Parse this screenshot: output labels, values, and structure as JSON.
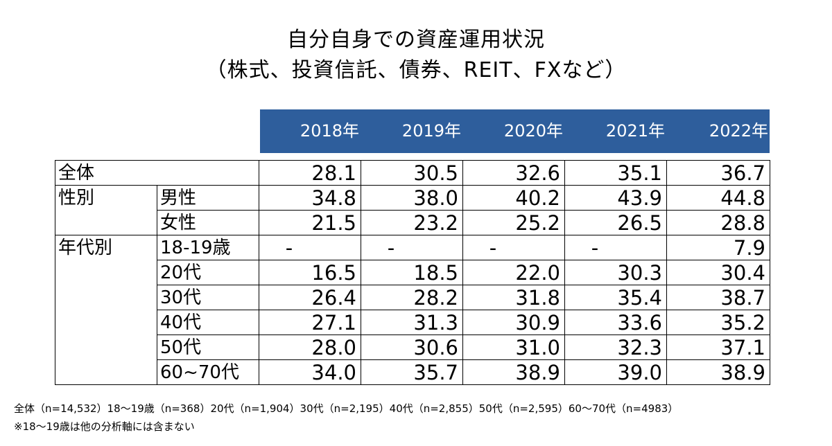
{
  "chart_data": {
    "type": "table",
    "title": "自分自身での資産運用状況",
    "subtitle": "（株式、投資信託、債券、REIT、FXなど）",
    "columns": [
      "2018年",
      "2019年",
      "2020年",
      "2021年",
      "2022年"
    ],
    "rows": [
      {
        "group": "全体",
        "label": "",
        "values": [
          "28.1",
          "30.5",
          "32.6",
          "35.1",
          "36.7"
        ]
      },
      {
        "group": "性別",
        "label": "男性",
        "values": [
          "34.8",
          "38.0",
          "40.2",
          "43.9",
          "44.8"
        ]
      },
      {
        "group": "",
        "label": "女性",
        "values": [
          "21.5",
          "23.2",
          "25.2",
          "26.5",
          "28.8"
        ]
      },
      {
        "group": "年代別",
        "label": "18-19歳",
        "values": [
          "-",
          "-",
          "-",
          "-",
          "7.9"
        ]
      },
      {
        "group": "",
        "label": "20代",
        "values": [
          "16.5",
          "18.5",
          "22.0",
          "30.3",
          "30.4"
        ]
      },
      {
        "group": "",
        "label": "30代",
        "values": [
          "26.4",
          "28.2",
          "31.8",
          "35.4",
          "38.7"
        ]
      },
      {
        "group": "",
        "label": "40代",
        "values": [
          "27.1",
          "31.3",
          "30.9",
          "33.6",
          "35.2"
        ]
      },
      {
        "group": "",
        "label": "50代",
        "values": [
          "28.0",
          "30.6",
          "31.0",
          "32.3",
          "37.1"
        ]
      },
      {
        "group": "",
        "label": "60~70代",
        "values": [
          "34.0",
          "35.7",
          "38.9",
          "39.0",
          "38.9"
        ]
      }
    ],
    "header_color": "#2e5e9c"
  },
  "footnotes": {
    "sample_sizes": "全体（n=14,532）18～19歳（n=368）20代（n=1,904）30代（n=2,195）40代（n=2,855）50代（n=2,595）60～70代（n=4983）",
    "note": "※18～19歳は他の分析軸には含まない"
  }
}
